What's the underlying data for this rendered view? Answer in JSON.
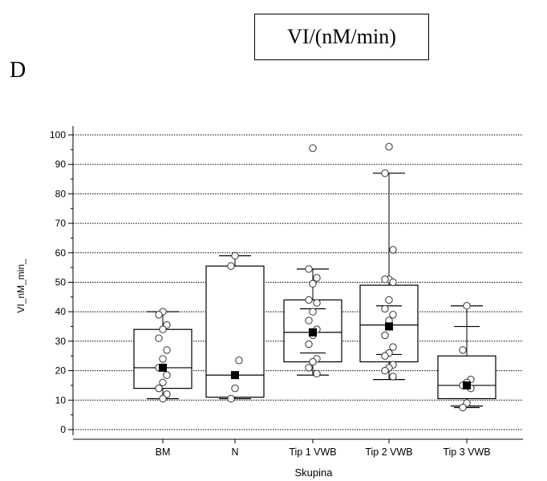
{
  "panel_label": "D",
  "title_box": "VI/(nM/min)",
  "chart_data": {
    "type": "box",
    "xlabel": "Skupina",
    "ylabel": "VI_nM_min_",
    "ylim": [
      0,
      100
    ],
    "yticks": [
      0,
      10,
      20,
      30,
      40,
      50,
      60,
      70,
      80,
      90,
      100
    ],
    "grid": "horizontal-dotted",
    "categories": [
      "BM",
      "N",
      "Tip 1 VWB",
      "Tip 2 VWB",
      "Tip 3 VWB"
    ],
    "groups": [
      {
        "name": "BM",
        "q1": 14,
        "median": 21,
        "q3": 34,
        "whisker_low": 10.5,
        "whisker_high": 40,
        "mean": 21,
        "points": [
          40,
          39,
          35.5,
          34,
          31,
          27,
          24,
          21,
          18.5,
          16,
          14,
          12,
          10.5
        ]
      },
      {
        "name": "N",
        "q1": 11,
        "median": 18.5,
        "q3": 55.5,
        "whisker_low": 10.5,
        "whisker_high": 59,
        "mean": 18.5,
        "points": [
          59,
          55.5,
          23.5,
          14,
          10.5
        ]
      },
      {
        "name": "Tip 1 VWB",
        "q1": 23,
        "median": 33,
        "q3": 44,
        "whisker_low": 18.5,
        "whisker_high": 54.5,
        "mean": 33,
        "ci_low": 26,
        "ci_high": 41,
        "points": [
          95.5,
          54.5,
          51.5,
          49.5,
          44,
          43,
          40,
          37,
          34,
          32,
          29,
          24,
          23,
          21,
          19
        ]
      },
      {
        "name": "Tip 2 VWB",
        "q1": 23,
        "median": 35.5,
        "q3": 49,
        "whisker_low": 17,
        "whisker_high": 87,
        "mean": 35,
        "ci_low": 25.5,
        "ci_high": 42,
        "points": [
          96,
          87,
          61,
          51,
          51,
          50,
          44,
          41,
          39,
          37,
          32,
          28,
          26,
          25,
          22,
          21,
          20,
          18
        ]
      },
      {
        "name": "Tip 3 VWB",
        "q1": 10.5,
        "median": 15,
        "q3": 25,
        "whisker_low": 8,
        "whisker_high": 42,
        "mean": 15,
        "ci_low": 7.5,
        "ci_high": 35,
        "points": [
          42,
          27,
          17,
          16,
          15,
          14,
          9,
          7.5
        ]
      }
    ]
  }
}
